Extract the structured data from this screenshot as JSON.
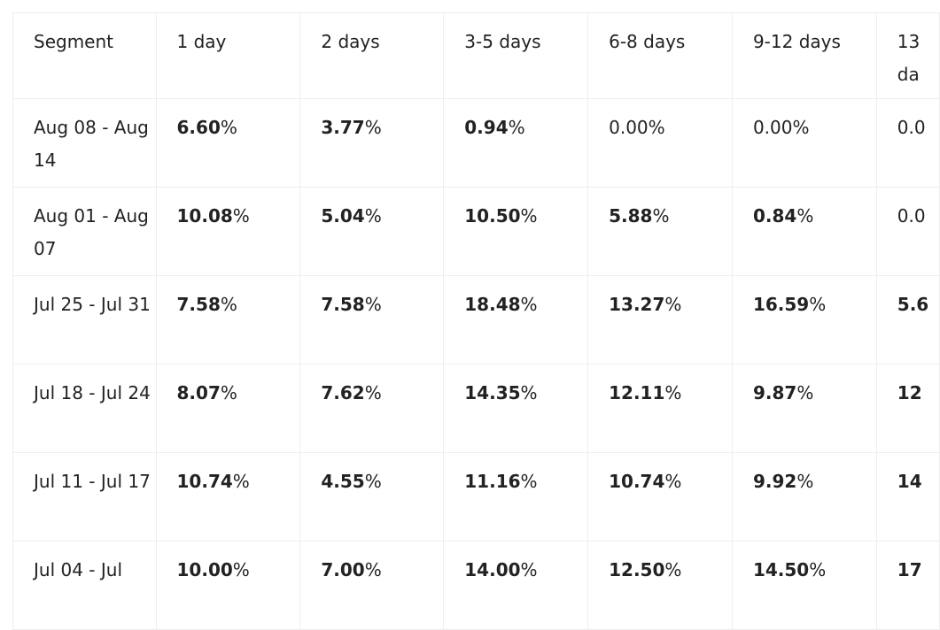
{
  "table": {
    "header": [
      "Segment",
      "1 day",
      "2 days",
      "3-5 days",
      "6-8 days",
      "9-12 days",
      "13 da"
    ],
    "rows": [
      {
        "segment": "Aug 08 - Aug 14",
        "cells": [
          {
            "value": "6.60",
            "suffix": "%",
            "bold": true
          },
          {
            "value": "3.77",
            "suffix": "%",
            "bold": true
          },
          {
            "value": "0.94",
            "suffix": "%",
            "bold": true
          },
          {
            "value": "0.00",
            "suffix": "%",
            "bold": false
          },
          {
            "value": "0.00",
            "suffix": "%",
            "bold": false
          },
          {
            "value": "0.0",
            "bold": false
          }
        ]
      },
      {
        "segment": "Aug 01 - Aug 07",
        "cells": [
          {
            "value": "10.08",
            "suffix": "%",
            "bold": true
          },
          {
            "value": "5.04",
            "suffix": "%",
            "bold": true
          },
          {
            "value": "10.50",
            "suffix": "%",
            "bold": true
          },
          {
            "value": "5.88",
            "suffix": "%",
            "bold": true
          },
          {
            "value": "0.84",
            "suffix": "%",
            "bold": true
          },
          {
            "value": "0.0",
            "bold": false
          }
        ]
      },
      {
        "segment": "Jul 25 - Jul 31",
        "cells": [
          {
            "value": "7.58",
            "suffix": "%",
            "bold": true
          },
          {
            "value": "7.58",
            "suffix": "%",
            "bold": true
          },
          {
            "value": "18.48",
            "suffix": "%",
            "bold": true
          },
          {
            "value": "13.27",
            "suffix": "%",
            "bold": true
          },
          {
            "value": "16.59",
            "suffix": "%",
            "bold": true
          },
          {
            "value": "5.6",
            "bold": true
          }
        ]
      },
      {
        "segment": "Jul 18 - Jul 24",
        "cells": [
          {
            "value": "8.07",
            "suffix": "%",
            "bold": true
          },
          {
            "value": "7.62",
            "suffix": "%",
            "bold": true
          },
          {
            "value": "14.35",
            "suffix": "%",
            "bold": true
          },
          {
            "value": "12.11",
            "suffix": "%",
            "bold": true
          },
          {
            "value": "9.87",
            "suffix": "%",
            "bold": true
          },
          {
            "value": "12",
            "bold": true
          }
        ]
      },
      {
        "segment": "Jul 11 - Jul 17",
        "cells": [
          {
            "value": "10.74",
            "suffix": "%",
            "bold": true
          },
          {
            "value": "4.55",
            "suffix": "%",
            "bold": true
          },
          {
            "value": "11.16",
            "suffix": "%",
            "bold": true
          },
          {
            "value": "10.74",
            "suffix": "%",
            "bold": true
          },
          {
            "value": "9.92",
            "suffix": "%",
            "bold": true
          },
          {
            "value": "14",
            "bold": true
          }
        ]
      },
      {
        "segment": "Jul 04 - Jul",
        "cells": [
          {
            "value": "10.00",
            "suffix": "%",
            "bold": true
          },
          {
            "value": "7.00",
            "suffix": "%",
            "bold": true
          },
          {
            "value": "14.00",
            "suffix": "%",
            "bold": true
          },
          {
            "value": "12.50",
            "suffix": "%",
            "bold": true
          },
          {
            "value": "14.50",
            "suffix": "%",
            "bold": true
          },
          {
            "value": "17",
            "bold": true
          }
        ]
      }
    ]
  }
}
